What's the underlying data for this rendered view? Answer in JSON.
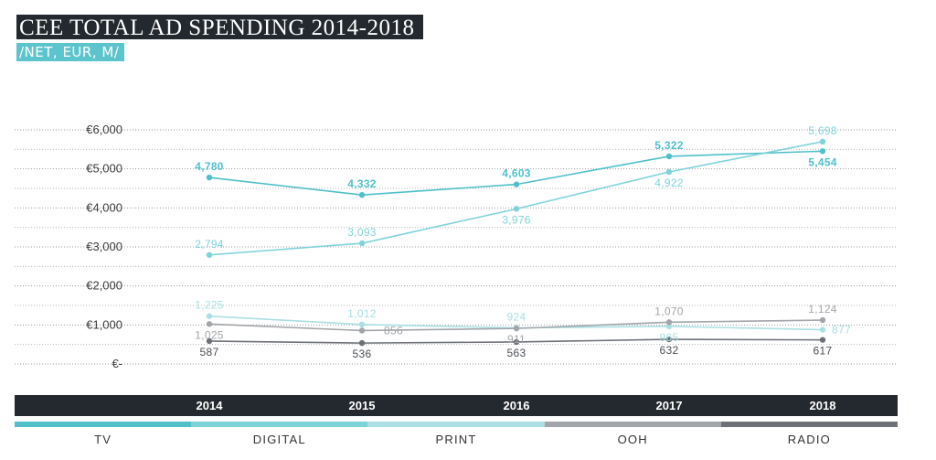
{
  "header": {
    "title": "CEE TOTAL AD SPENDING 2014-2018",
    "subtitle": "/NET, EUR, M/"
  },
  "chart_data": {
    "type": "line",
    "title": "CEE TOTAL AD SPENDING 2014-2018",
    "subtitle": "/NET, EUR, M/",
    "categories": [
      "2014",
      "2015",
      "2016",
      "2017",
      "2018"
    ],
    "ylim": [
      0,
      6000
    ],
    "yticks": [
      0,
      1000,
      2000,
      3000,
      4000,
      5000,
      6000
    ],
    "ytick_labels": [
      "€-",
      "€1,000",
      "€2,000",
      "€3,000",
      "€4,000",
      "€5,000",
      "€6,000"
    ],
    "grid": true,
    "legend_position": "bottom",
    "series": [
      {
        "name": "TV",
        "values": [
          4780,
          4332,
          4603,
          5322,
          5454
        ],
        "labels": [
          "4,780",
          "4,332",
          "4,603",
          "5,322",
          "5,454"
        ],
        "color": "#4fc0c9"
      },
      {
        "name": "DIGITAL",
        "values": [
          2794,
          3093,
          3976,
          4922,
          5698
        ],
        "labels": [
          "2,794",
          "3,093",
          "3,976",
          "4,922",
          "5,698"
        ],
        "color": "#7ed3d9"
      },
      {
        "name": "PRINT",
        "values": [
          1225,
          1012,
          924,
          965,
          877
        ],
        "labels": [
          "1,225",
          "1,012",
          "924",
          "965",
          "877"
        ],
        "color": "#aadfe3"
      },
      {
        "name": "OOH",
        "values": [
          1025,
          856,
          911,
          1070,
          1124
        ],
        "labels": [
          "1,025",
          "856",
          "911",
          "1,070",
          "1,124"
        ],
        "color": "#a2a5a9"
      },
      {
        "name": "RADIO",
        "values": [
          587,
          536,
          563,
          632,
          617
        ],
        "labels": [
          "587",
          "536",
          "563",
          "632",
          "617"
        ],
        "color": "#6d7177"
      }
    ]
  }
}
